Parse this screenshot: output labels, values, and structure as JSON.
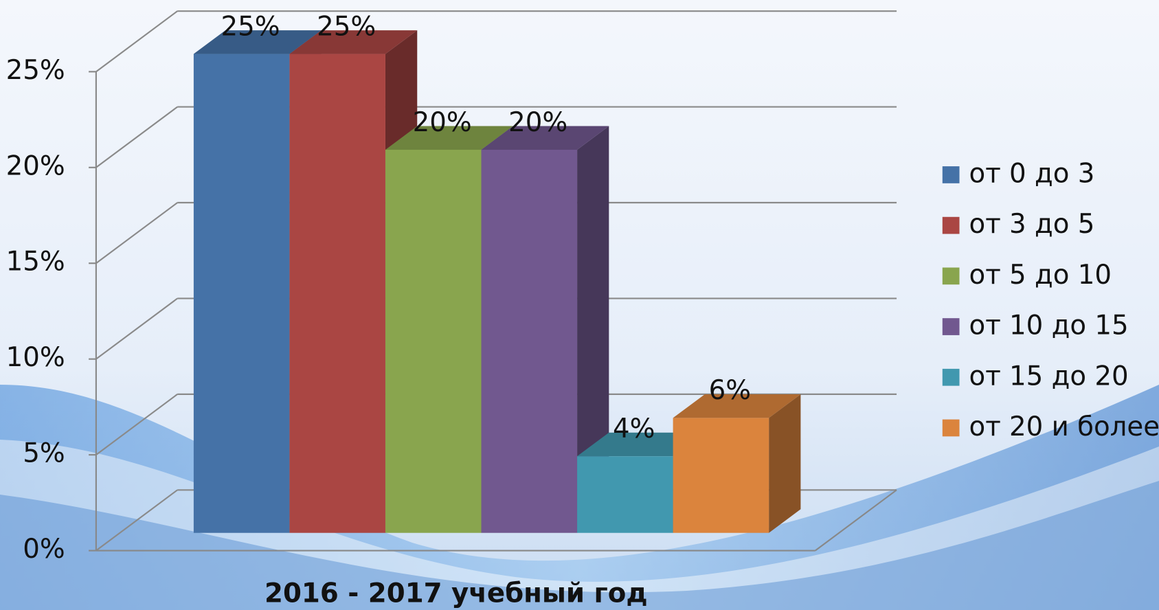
{
  "chart_data": {
    "type": "bar3d",
    "categories": [
      "2016 - 2017 учебный год"
    ],
    "series": [
      {
        "name": "от 0 до 3",
        "color": "#4572a7",
        "values": [
          25
        ],
        "value_labels": [
          "25%"
        ]
      },
      {
        "name": "от 3 до 5",
        "color": "#aa4643",
        "values": [
          25
        ],
        "value_labels": [
          "25%"
        ]
      },
      {
        "name": "от 5 до 10",
        "color": "#89a54e",
        "values": [
          20
        ],
        "value_labels": [
          "20%"
        ]
      },
      {
        "name": "от 10 до 15",
        "color": "#71588f",
        "values": [
          20
        ],
        "value_labels": [
          "20%"
        ]
      },
      {
        "name": "от 15 до 20",
        "color": "#4198af",
        "values": [
          4
        ],
        "value_labels": [
          "4%"
        ]
      },
      {
        "name": "от 20 и более",
        "color": "#db843d",
        "values": [
          6
        ],
        "value_labels": [
          "6%"
        ]
      }
    ],
    "ylim": [
      0,
      25
    ],
    "yticks": [
      {
        "value": 0,
        "label": "0%"
      },
      {
        "value": 5,
        "label": "5%"
      },
      {
        "value": 10,
        "label": "10%"
      },
      {
        "value": 15,
        "label": "15%"
      },
      {
        "value": 20,
        "label": "20%"
      },
      {
        "value": 25,
        "label": "25%"
      }
    ],
    "grid": true,
    "legend": "right"
  }
}
